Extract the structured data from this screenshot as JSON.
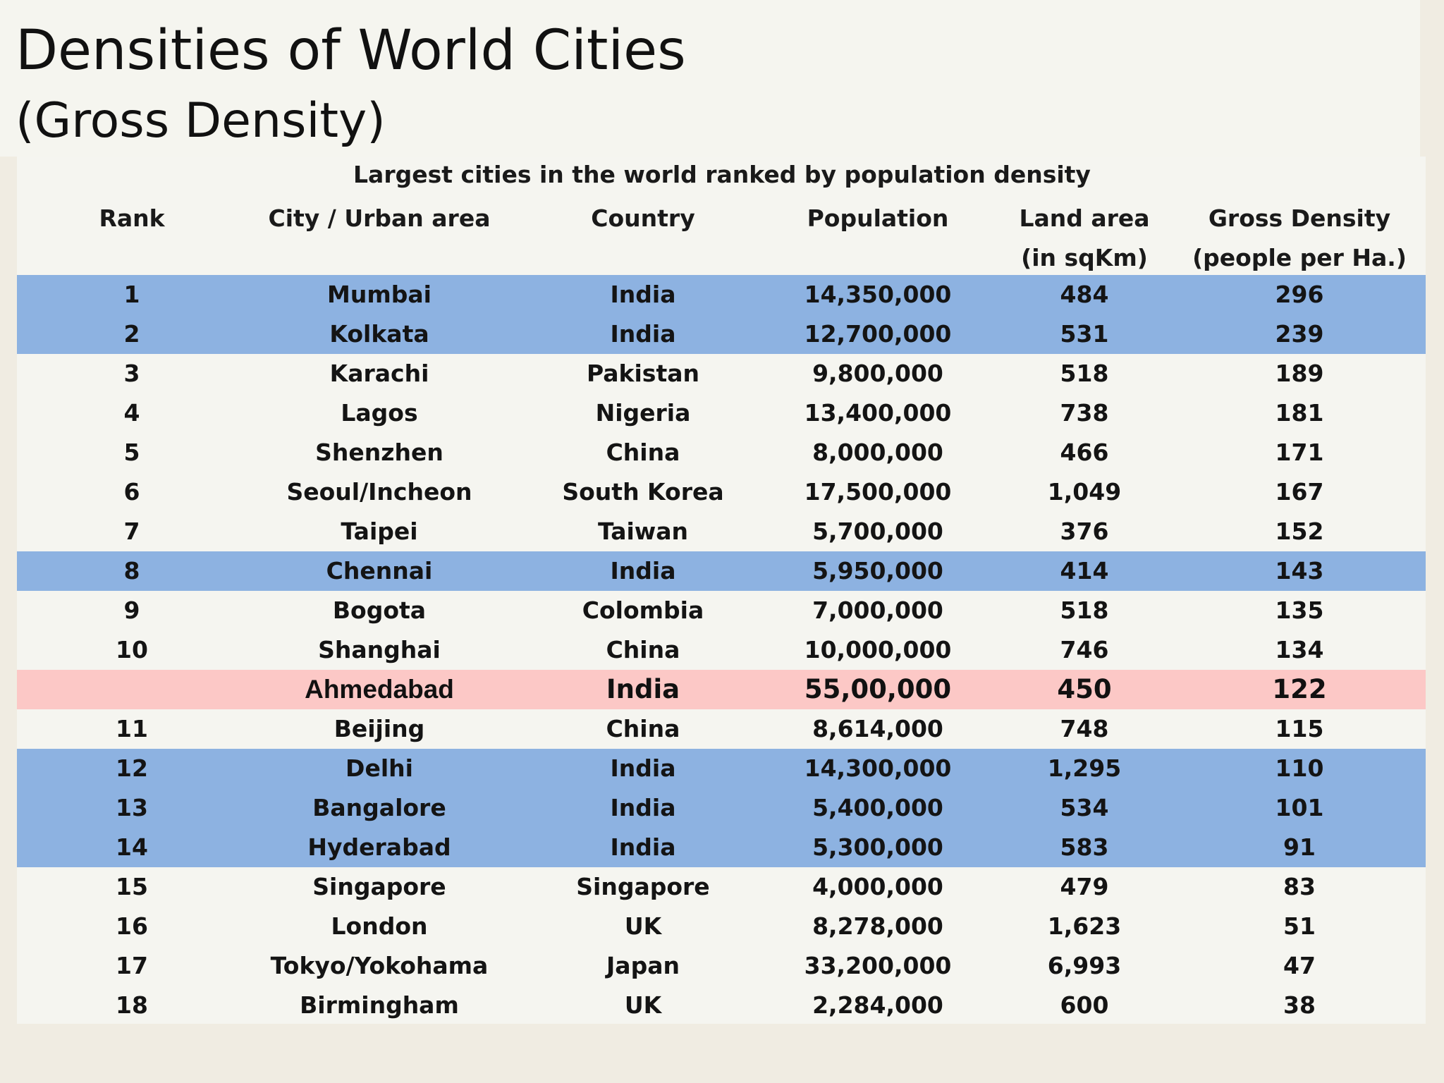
{
  "title": {
    "line1": "Densities of World Cities",
    "line2": "(Gross Density)"
  },
  "table": {
    "caption": "Largest cities in the world ranked by population density",
    "headers": {
      "rank": "Rank",
      "city": "City / Urban area",
      "country": "Country",
      "population": "Population",
      "land_area": "Land area",
      "land_area_unit": "(in sqKm)",
      "gross_density": "Gross Density",
      "gross_density_unit": "(people per Ha.)"
    },
    "rows": [
      {
        "rank": "1",
        "city": "Mumbai",
        "country": "India",
        "population": "14,350,000",
        "land_area": "484",
        "density": "296",
        "highlight": "blue"
      },
      {
        "rank": "2",
        "city": "Kolkata",
        "country": "India",
        "population": "12,700,000",
        "land_area": "531",
        "density": "239",
        "highlight": "blue"
      },
      {
        "rank": "3",
        "city": "Karachi",
        "country": "Pakistan",
        "population": "9,800,000",
        "land_area": "518",
        "density": "189",
        "highlight": "none"
      },
      {
        "rank": "4",
        "city": "Lagos",
        "country": "Nigeria",
        "population": "13,400,000",
        "land_area": "738",
        "density": "181",
        "highlight": "none"
      },
      {
        "rank": "5",
        "city": "Shenzhen",
        "country": "China",
        "population": "8,000,000",
        "land_area": "466",
        "density": "171",
        "highlight": "none"
      },
      {
        "rank": "6",
        "city": "Seoul/Incheon",
        "country": "South Korea",
        "population": "17,500,000",
        "land_area": "1,049",
        "density": "167",
        "highlight": "none"
      },
      {
        "rank": "7",
        "city": "Taipei",
        "country": "Taiwan",
        "population": "5,700,000",
        "land_area": "376",
        "density": "152",
        "highlight": "none"
      },
      {
        "rank": "8",
        "city": "Chennai",
        "country": "India",
        "population": "5,950,000",
        "land_area": "414",
        "density": "143",
        "highlight": "blue"
      },
      {
        "rank": "9",
        "city": "Bogota",
        "country": "Colombia",
        "population": "7,000,000",
        "land_area": "518",
        "density": "135",
        "highlight": "none"
      },
      {
        "rank": "10",
        "city": "Shanghai",
        "country": "China",
        "population": "10,000,000",
        "land_area": "746",
        "density": "134",
        "highlight": "none"
      },
      {
        "rank": "",
        "city": "Ahmedabad",
        "country": "India",
        "population": "55,00,000",
        "land_area": "450",
        "density": "122",
        "highlight": "pink"
      },
      {
        "rank": "11",
        "city": "Beijing",
        "country": "China",
        "population": "8,614,000",
        "land_area": "748",
        "density": "115",
        "highlight": "none"
      },
      {
        "rank": "12",
        "city": "Delhi",
        "country": "India",
        "population": "14,300,000",
        "land_area": "1,295",
        "density": "110",
        "highlight": "blue"
      },
      {
        "rank": "13",
        "city": "Bangalore",
        "country": "India",
        "population": "5,400,000",
        "land_area": "534",
        "density": "101",
        "highlight": "blue"
      },
      {
        "rank": "14",
        "city": "Hyderabad",
        "country": "India",
        "population": "5,300,000",
        "land_area": "583",
        "density": "91",
        "highlight": "blue"
      },
      {
        "rank": "15",
        "city": "Singapore",
        "country": "Singapore",
        "population": "4,000,000",
        "land_area": "479",
        "density": "83",
        "highlight": "none"
      },
      {
        "rank": "16",
        "city": "London",
        "country": "UK",
        "population": "8,278,000",
        "land_area": "1,623",
        "density": "51",
        "highlight": "none"
      },
      {
        "rank": "17",
        "city": "Tokyo/Yokohama",
        "country": "Japan",
        "population": "33,200,000",
        "land_area": "6,993",
        "density": "47",
        "highlight": "none"
      },
      {
        "rank": "18",
        "city": "Birmingham",
        "country": "UK",
        "population": "2,284,000",
        "land_area": "600",
        "density": "38",
        "highlight": "none"
      }
    ]
  },
  "colors": {
    "india_highlight": "#8db2e1",
    "ahmedabad_highlight": "#fcc8c6",
    "panel_background": "#f5f5f0"
  }
}
